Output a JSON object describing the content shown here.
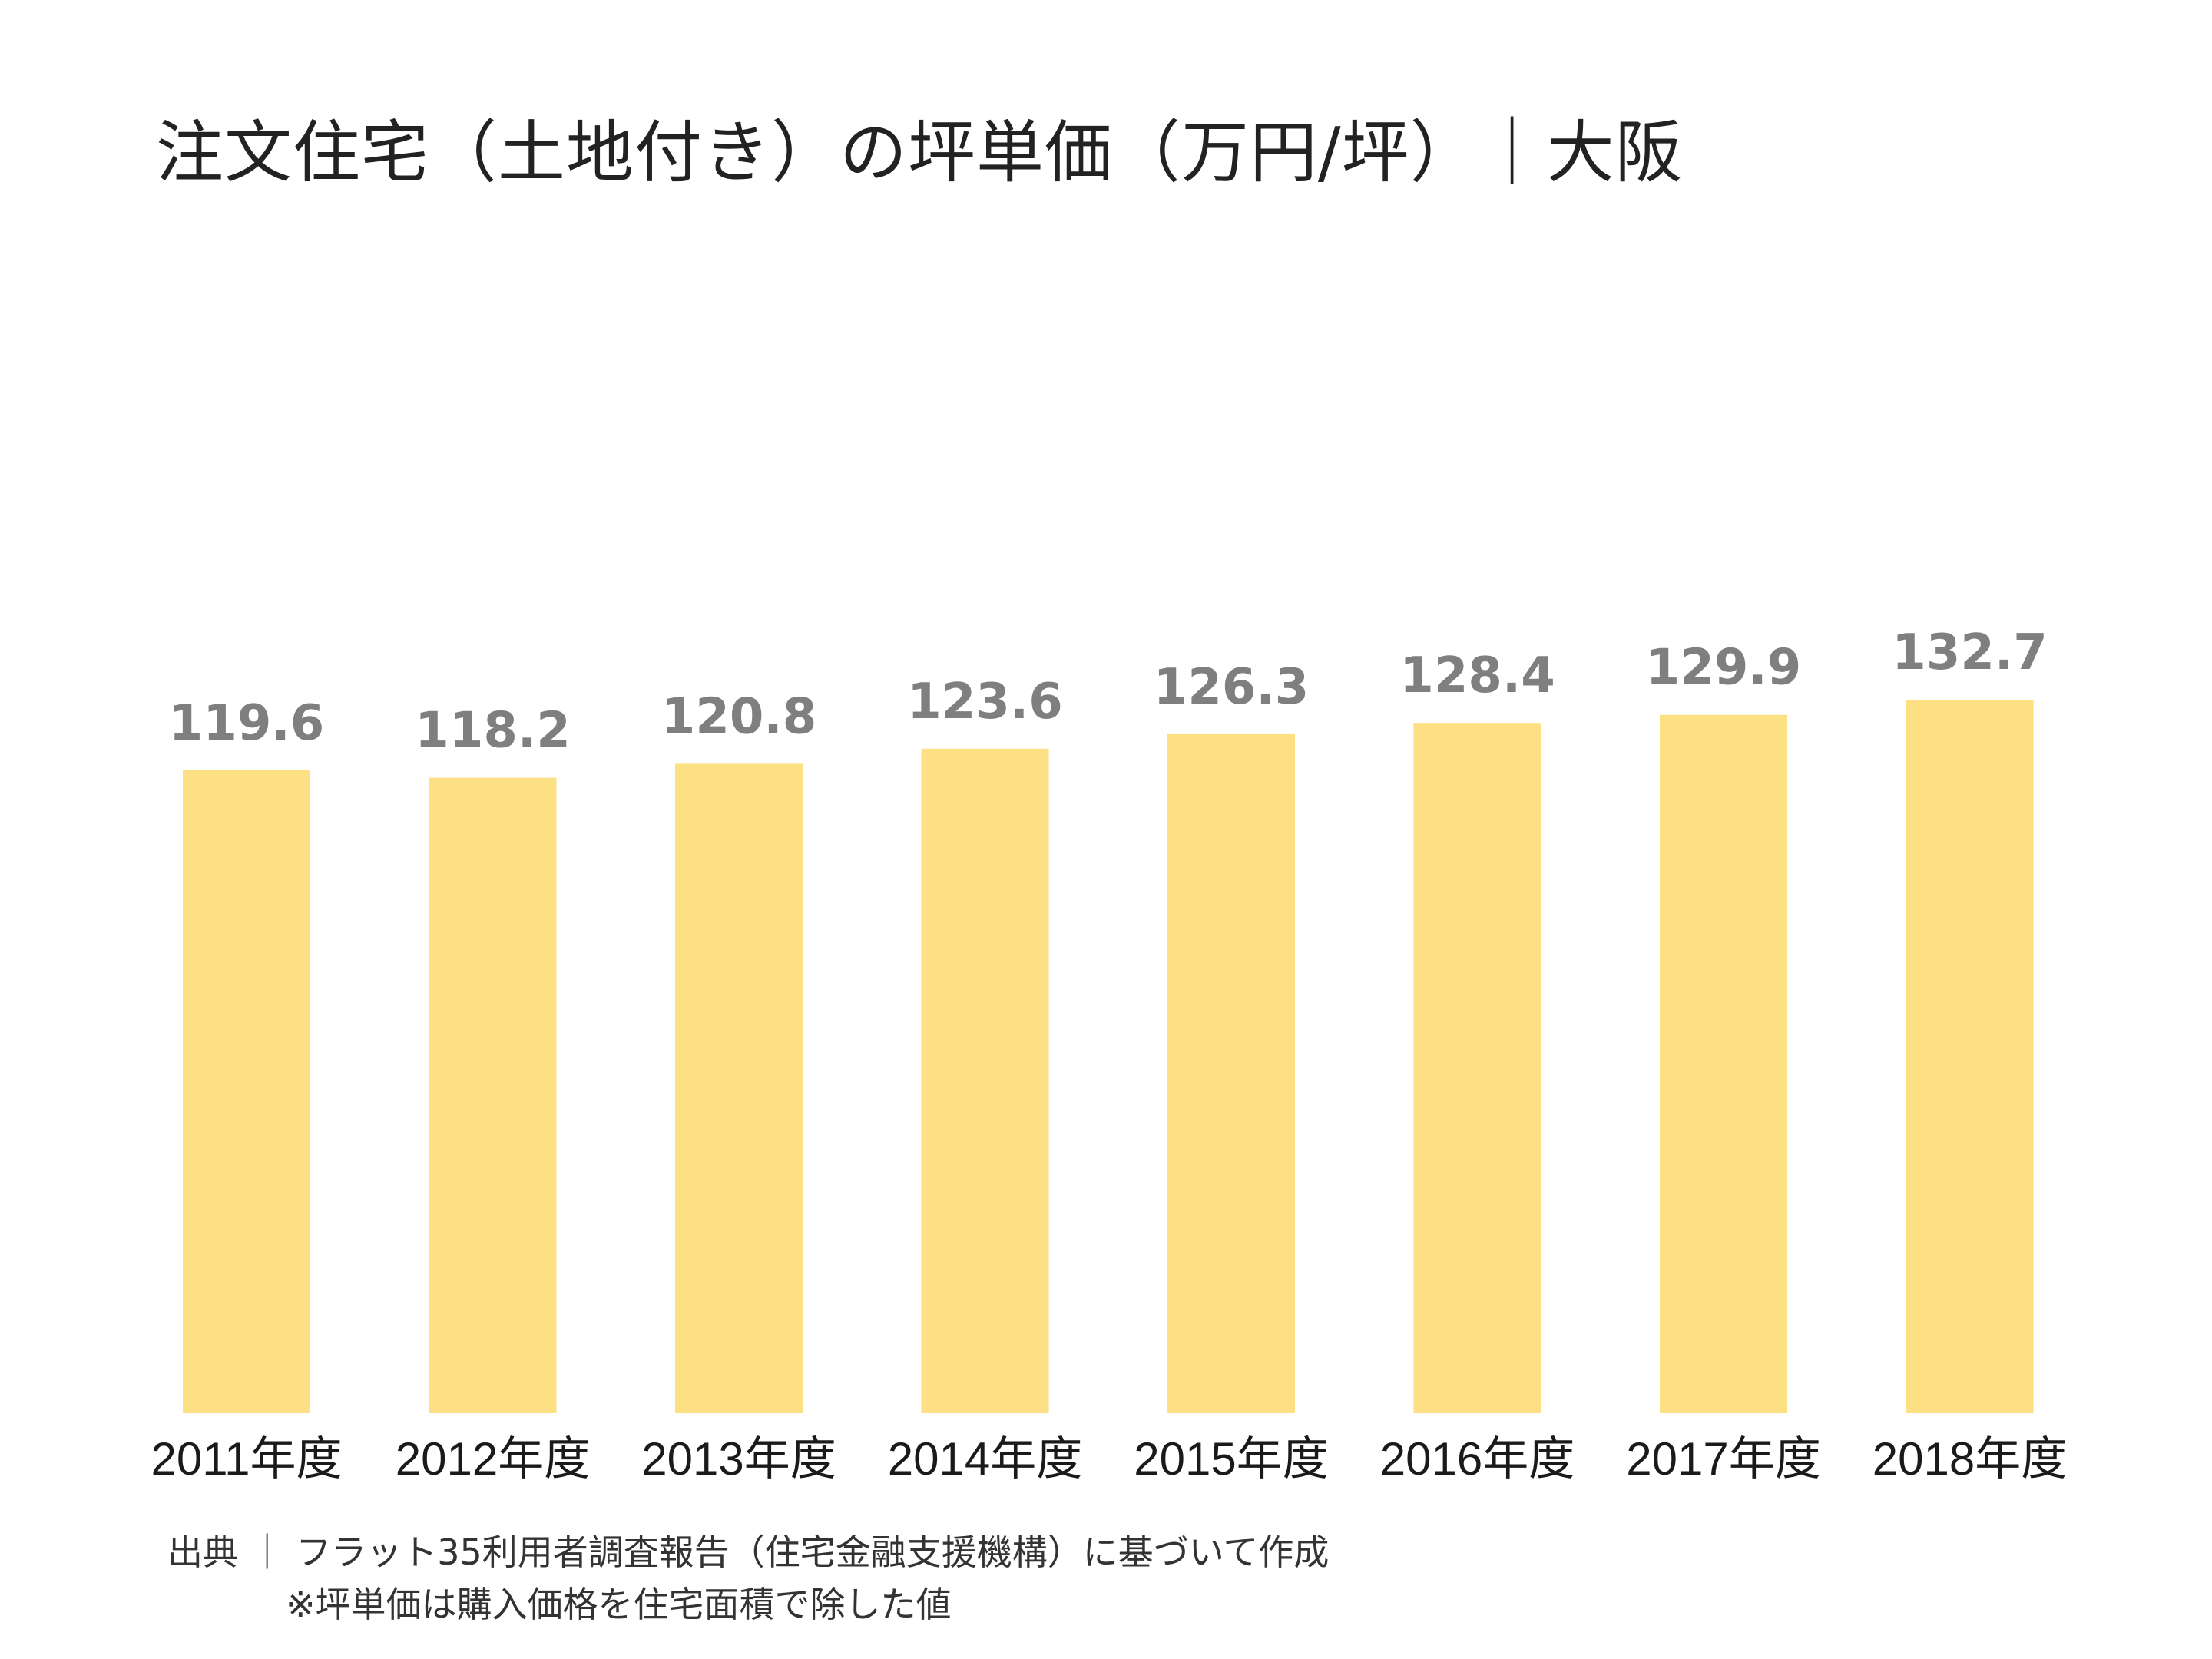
{
  "chart_data": {
    "type": "bar",
    "title": "注文住宅（土地付き）の坪単価（万円/坪）｜大阪",
    "categories": [
      "2011年度",
      "2012年度",
      "2013年度",
      "2014年度",
      "2015年度",
      "2016年度",
      "2017年度",
      "2018年度"
    ],
    "values": [
      119.6,
      118.2,
      120.8,
      123.6,
      126.3,
      128.4,
      129.9,
      132.7
    ],
    "value_labels": [
      "119.6",
      "118.2",
      "120.8",
      "123.6",
      "126.3",
      "128.4",
      "129.9",
      "132.7"
    ],
    "xlabel": "",
    "ylabel": "",
    "ylim": [
      0,
      240
    ],
    "grid": false,
    "legend": "none",
    "bar_color": "#FDDF84"
  },
  "footer": {
    "source": "出典 ｜ フラット35利用者調査報告（住宅金融支援機構）に基づいて作成",
    "note": "※坪単価は購入価格を住宅面積で除した値"
  }
}
